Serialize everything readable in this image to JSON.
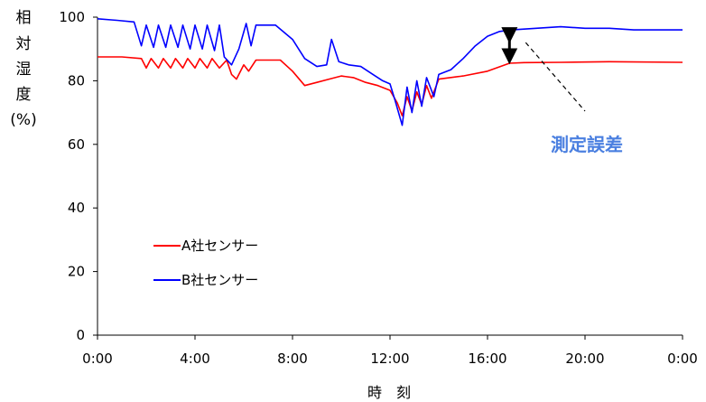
{
  "chart_data": {
    "type": "line",
    "title": "",
    "xlabel": "時　刻",
    "ylabel_chars": [
      "相",
      "対",
      "湿",
      "度",
      "(%)"
    ],
    "x_ticks": [
      "0:00",
      "4:00",
      "8:00",
      "12:00",
      "16:00",
      "20:00",
      "0:00"
    ],
    "y_ticks": [
      "0",
      "20",
      "40",
      "60",
      "80",
      "100"
    ],
    "xlim_hours": [
      0,
      24
    ],
    "ylim": [
      0,
      100
    ],
    "grid": false,
    "legend_position": "lower-left",
    "annotation": {
      "text": "測定誤差",
      "arrow_hour": 16.9,
      "arrow_values": [
        96,
        86
      ]
    },
    "colors": {
      "A": "#ff0000",
      "B": "#0000ff",
      "annotation": "#4a7fe0"
    },
    "series": [
      {
        "name": "A社センサー",
        "color": "#ff0000",
        "points": [
          [
            0.0,
            87.5
          ],
          [
            1.0,
            87.5
          ],
          [
            1.8,
            87.0
          ],
          [
            2.0,
            84.0
          ],
          [
            2.2,
            87.0
          ],
          [
            2.5,
            84.0
          ],
          [
            2.7,
            87.0
          ],
          [
            3.0,
            84.0
          ],
          [
            3.2,
            87.0
          ],
          [
            3.5,
            84.0
          ],
          [
            3.7,
            87.0
          ],
          [
            4.0,
            84.0
          ],
          [
            4.2,
            87.0
          ],
          [
            4.5,
            84.0
          ],
          [
            4.7,
            87.0
          ],
          [
            5.0,
            84.0
          ],
          [
            5.3,
            86.5
          ],
          [
            5.5,
            82.0
          ],
          [
            5.7,
            80.5
          ],
          [
            6.0,
            85.0
          ],
          [
            6.2,
            83.0
          ],
          [
            6.5,
            86.5
          ],
          [
            7.5,
            86.5
          ],
          [
            8.0,
            83.0
          ],
          [
            8.5,
            78.5
          ],
          [
            9.0,
            79.5
          ],
          [
            9.5,
            80.5
          ],
          [
            10.0,
            81.5
          ],
          [
            10.5,
            81.0
          ],
          [
            11.0,
            79.5
          ],
          [
            11.5,
            78.5
          ],
          [
            12.0,
            77.0
          ],
          [
            12.3,
            73.0
          ],
          [
            12.5,
            69.0
          ],
          [
            12.7,
            75.0
          ],
          [
            12.9,
            70.5
          ],
          [
            13.1,
            76.5
          ],
          [
            13.3,
            72.5
          ],
          [
            13.5,
            78.5
          ],
          [
            13.7,
            74.5
          ],
          [
            14.0,
            80.5
          ],
          [
            15.0,
            81.5
          ],
          [
            16.0,
            83.0
          ],
          [
            16.9,
            85.5
          ],
          [
            17.5,
            85.7
          ],
          [
            19.0,
            85.8
          ],
          [
            21.0,
            86.0
          ],
          [
            24.0,
            85.8
          ]
        ]
      },
      {
        "name": "B社センサー",
        "color": "#0000ff",
        "points": [
          [
            0.0,
            99.5
          ],
          [
            0.8,
            99.0
          ],
          [
            1.5,
            98.5
          ],
          [
            1.8,
            91.0
          ],
          [
            2.0,
            97.5
          ],
          [
            2.3,
            90.5
          ],
          [
            2.5,
            97.5
          ],
          [
            2.8,
            90.5
          ],
          [
            3.0,
            97.5
          ],
          [
            3.3,
            90.5
          ],
          [
            3.5,
            97.5
          ],
          [
            3.8,
            90.0
          ],
          [
            4.0,
            97.5
          ],
          [
            4.3,
            90.0
          ],
          [
            4.5,
            97.5
          ],
          [
            4.8,
            89.5
          ],
          [
            5.0,
            97.5
          ],
          [
            5.2,
            87.5
          ],
          [
            5.5,
            85.0
          ],
          [
            5.8,
            90.0
          ],
          [
            6.1,
            98.0
          ],
          [
            6.3,
            91.0
          ],
          [
            6.5,
            97.5
          ],
          [
            7.3,
            97.5
          ],
          [
            8.0,
            93.0
          ],
          [
            8.5,
            87.0
          ],
          [
            9.0,
            84.5
          ],
          [
            9.4,
            85.0
          ],
          [
            9.6,
            93.0
          ],
          [
            9.9,
            86.0
          ],
          [
            10.3,
            85.0
          ],
          [
            10.8,
            84.5
          ],
          [
            11.3,
            82.0
          ],
          [
            11.7,
            80.0
          ],
          [
            12.0,
            79.0
          ],
          [
            12.2,
            74.0
          ],
          [
            12.5,
            66.0
          ],
          [
            12.7,
            78.0
          ],
          [
            12.9,
            70.0
          ],
          [
            13.1,
            80.0
          ],
          [
            13.3,
            72.0
          ],
          [
            13.5,
            81.0
          ],
          [
            13.8,
            75.0
          ],
          [
            14.0,
            82.0
          ],
          [
            14.5,
            83.5
          ],
          [
            15.0,
            87.0
          ],
          [
            15.5,
            91.0
          ],
          [
            16.0,
            94.0
          ],
          [
            16.5,
            95.5
          ],
          [
            17.0,
            96.0
          ],
          [
            18.0,
            96.5
          ],
          [
            19.0,
            97.0
          ],
          [
            20.0,
            96.5
          ],
          [
            21.0,
            96.5
          ],
          [
            22.0,
            96.0
          ],
          [
            23.0,
            96.0
          ],
          [
            24.0,
            96.0
          ]
        ]
      }
    ]
  }
}
